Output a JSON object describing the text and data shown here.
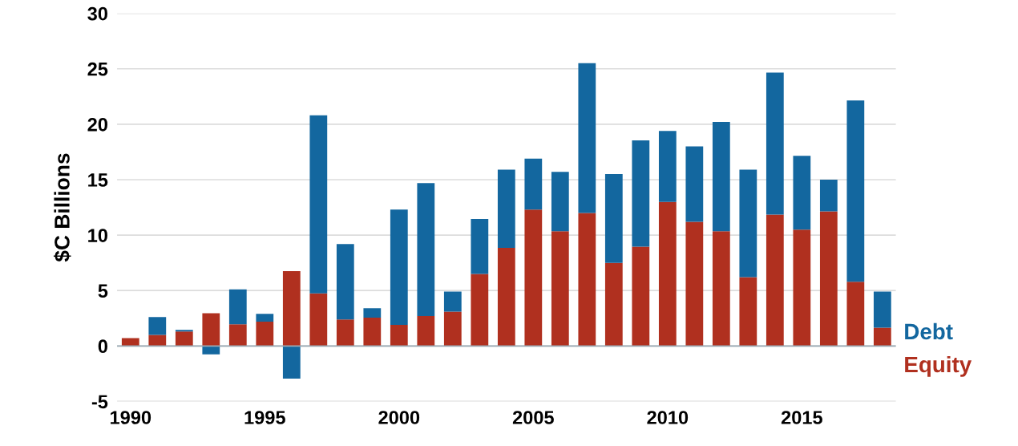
{
  "chart_data": {
    "type": "bar",
    "stacked": true,
    "ylabel": "$C Billions",
    "x": [
      1990,
      1991,
      1992,
      1993,
      1994,
      1995,
      1996,
      1997,
      1998,
      1999,
      2000,
      2001,
      2002,
      2003,
      2004,
      2005,
      2006,
      2007,
      2008,
      2009,
      2010,
      2011,
      2012,
      2013,
      2014,
      2015,
      2016,
      2017,
      2018
    ],
    "xlim": [
      1989.5,
      2018.5
    ],
    "xticks": [
      1990,
      1995,
      2000,
      2005,
      2010,
      2015
    ],
    "ylim": [
      -5,
      30
    ],
    "yticks": [
      -5,
      0,
      5,
      10,
      15,
      20,
      25,
      30
    ],
    "grid": "y",
    "legend": "right",
    "series": [
      {
        "name": "Equity",
        "color": "#b0301f",
        "values": [
          0.7,
          1.0,
          1.3,
          2.95,
          1.95,
          2.2,
          6.75,
          4.75,
          2.4,
          2.55,
          1.9,
          2.7,
          3.1,
          6.5,
          8.85,
          12.3,
          10.35,
          12.0,
          7.5,
          8.95,
          13.0,
          11.2,
          10.35,
          6.2,
          11.85,
          10.5,
          12.15,
          5.8,
          1.65
        ]
      },
      {
        "name": "Debt",
        "color": "#13679f",
        "values": [
          null,
          1.6,
          0.15,
          -0.75,
          3.15,
          0.7,
          -2.95,
          16.05,
          6.8,
          0.85,
          10.4,
          12.0,
          1.8,
          4.95,
          7.05,
          4.6,
          5.35,
          13.5,
          8.0,
          9.6,
          6.4,
          6.8,
          9.85,
          9.7,
          12.8,
          6.65,
          2.85,
          16.35,
          3.25
        ]
      }
    ]
  }
}
